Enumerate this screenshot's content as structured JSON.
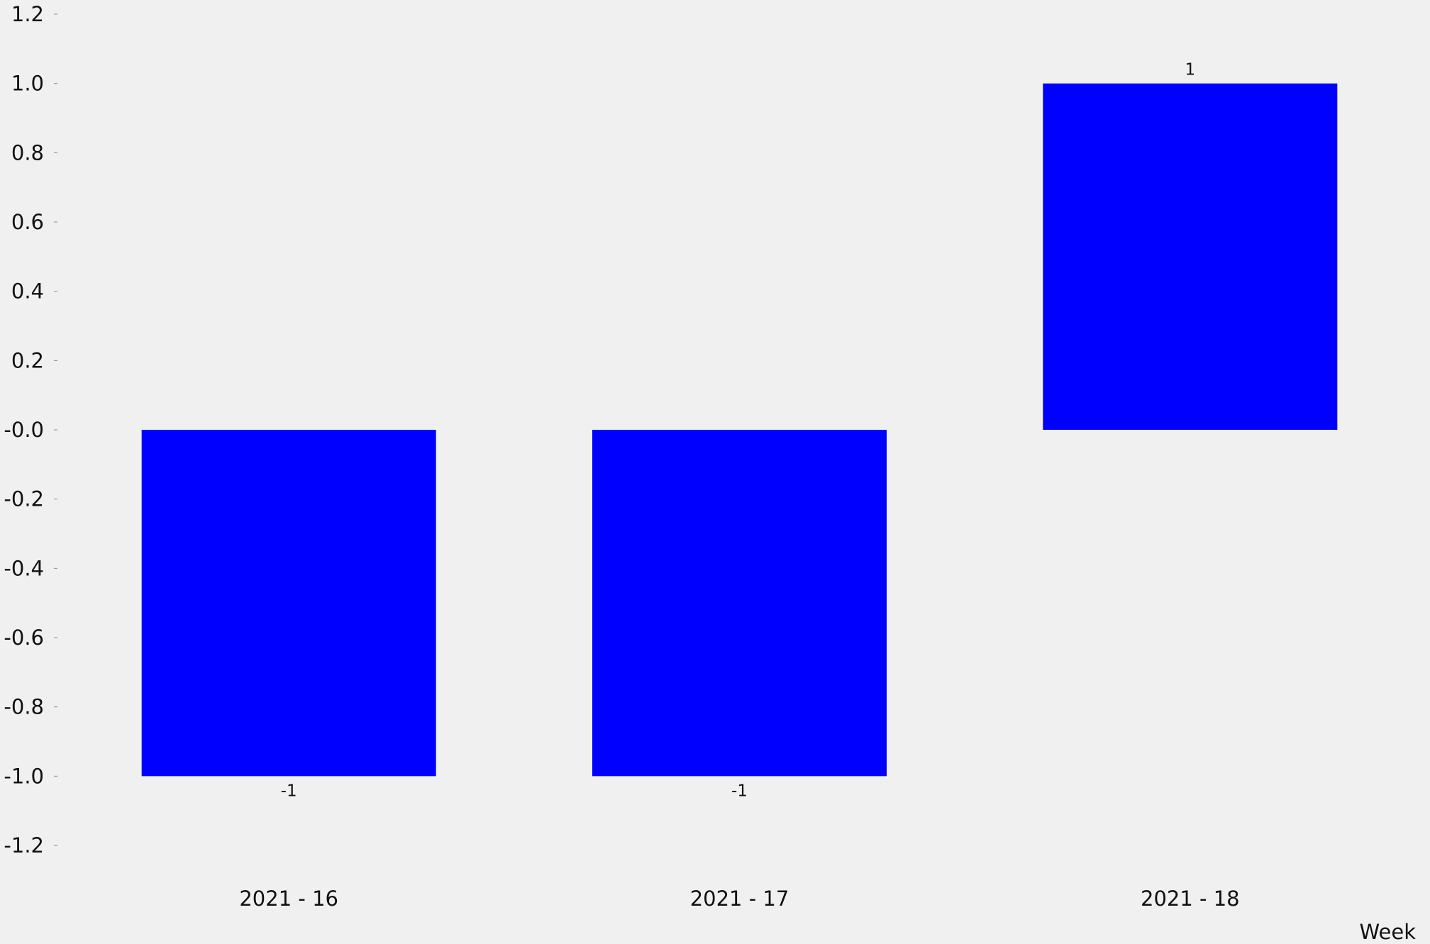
{
  "chart_data": {
    "type": "bar",
    "categories": [
      "2021 - 16",
      "2021 - 17",
      "2021 - 18"
    ],
    "values": [
      -1,
      -1,
      1
    ],
    "value_labels": [
      "-1",
      "-1",
      "1"
    ],
    "xlabel": "Week",
    "ylabel": "",
    "ylim": [
      -1.2,
      1.2
    ],
    "yticks": [
      1.2,
      1.0,
      0.8,
      0.6,
      0.4,
      0.2,
      0.0,
      -0.2,
      -0.4,
      -0.6,
      -0.8,
      -1.0,
      -1.2
    ],
    "ytick_labels": [
      "1.2",
      "1.0",
      "0.8",
      "0.6",
      "0.4",
      "0.2",
      "-0.0",
      "-0.2",
      "-0.4",
      "-0.6",
      "-0.8",
      "-1.0",
      "-1.2"
    ],
    "grid": false,
    "bar_color": "#0000ff",
    "background_color": "#f0f0f0"
  }
}
